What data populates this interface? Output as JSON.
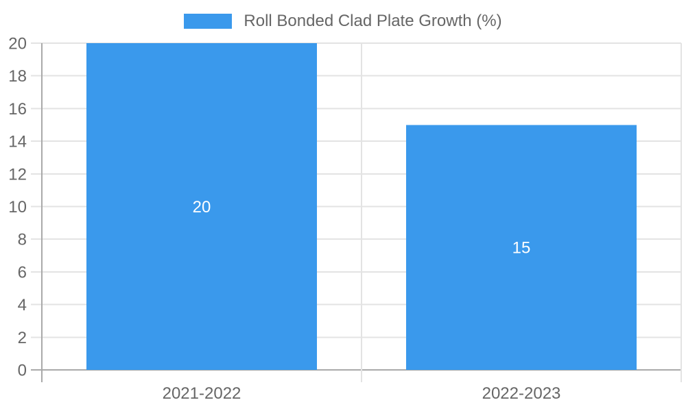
{
  "chart_data": {
    "type": "bar",
    "title": "Roll Bonded Clad Plate Growth (%)",
    "categories": [
      "2021-2022",
      "2022-2023"
    ],
    "series": [
      {
        "name": "Roll Bonded Clad Plate Growth (%)",
        "values": [
          20,
          15
        ]
      }
    ],
    "data_labels": [
      "20",
      "15"
    ],
    "xlabel": "",
    "ylabel": "",
    "ylim": [
      0,
      20
    ],
    "yticks": [
      0,
      2,
      4,
      6,
      8,
      10,
      12,
      14,
      16,
      18,
      20
    ],
    "grid": true,
    "legend_position": "top-center",
    "colors": {
      "bar": "#3a99ec",
      "grid_line": "#e3e3e3",
      "axis_line": "#a9a9a9",
      "tick_label": "#666666",
      "legend_text": "#666666",
      "data_label": "#ffffff",
      "background": "#ffffff"
    }
  }
}
